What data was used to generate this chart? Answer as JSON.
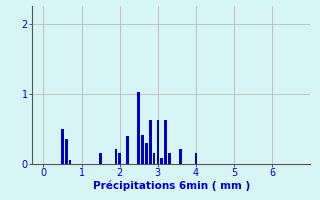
{
  "title": "",
  "xlabel": "Précipitations 6min ( mm )",
  "ylabel": "",
  "bar_color": "#0000cc",
  "background_color": "#d8f5f5",
  "grid_color": "#b0b0b0",
  "axis_label_color": "#0000cc",
  "tick_color": "#0000cc",
  "xlim": [
    -0.3,
    7.0
  ],
  "ylim": [
    0,
    2.25
  ],
  "yticks": [
    0,
    1,
    2
  ],
  "xticks": [
    0,
    1,
    2,
    3,
    4,
    5,
    6
  ],
  "bar_positions": [
    0.5,
    0.6,
    0.7,
    1.5,
    1.9,
    2.0,
    2.2,
    2.5,
    2.6,
    2.7,
    2.8,
    2.9,
    3.0,
    3.1,
    3.2,
    3.3,
    3.6,
    4.0
  ],
  "bar_heights": [
    0.5,
    0.35,
    0.05,
    0.15,
    0.22,
    0.15,
    0.4,
    1.02,
    0.42,
    0.3,
    0.62,
    0.15,
    0.62,
    0.08,
    0.62,
    0.15,
    0.22,
    0.15
  ],
  "bar_width": 0.07,
  "tick_fontsize": 7,
  "xlabel_fontsize": 7.5
}
